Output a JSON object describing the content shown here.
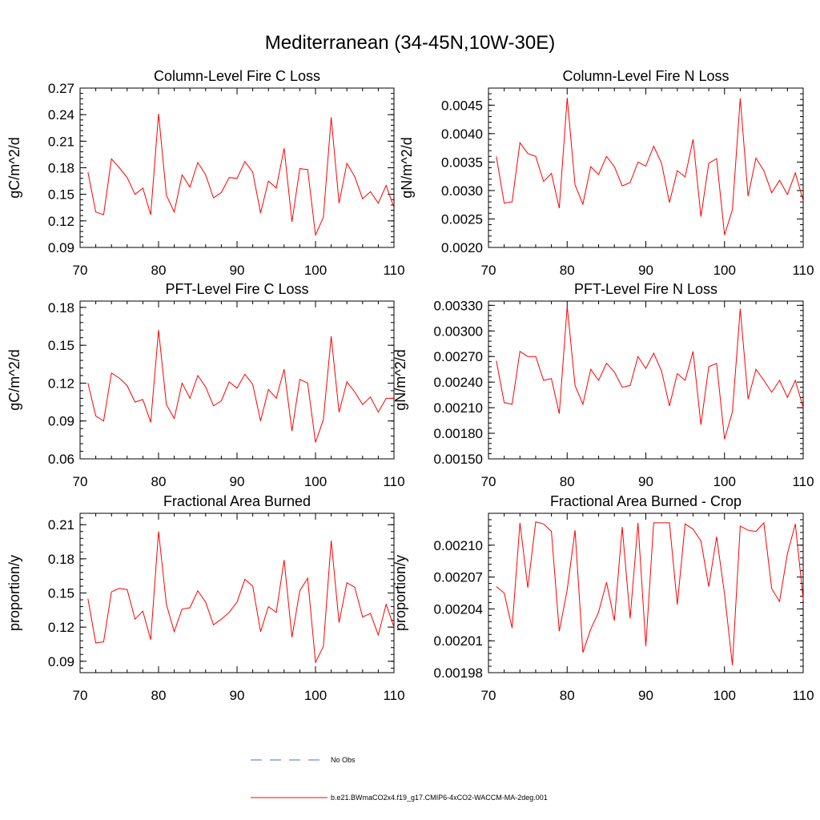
{
  "title": "Mediterranean (34-45N,10W-30E)",
  "colors": {
    "series": "#ff0000",
    "obs": "#4a6fd0",
    "axis": "#000000"
  },
  "legend": {
    "obs_label": "No Obs",
    "run_label": "b.e21.BWmaCO2x4.f19_g17.CMIP6-4xCO2-WACCM-MA-2deg.001"
  },
  "chart_data": [
    {
      "type": "line",
      "title": "Column-Level Fire C Loss",
      "ylabel": "gC/m^2/d",
      "xlim": [
        70,
        110
      ],
      "ylim": [
        0.09,
        0.27
      ],
      "xticks": [
        70,
        80,
        90,
        100,
        110
      ],
      "xtick_labels": [
        "70",
        "80",
        "90",
        "100",
        "110"
      ],
      "yticks": [
        0.09,
        0.12,
        0.15,
        0.18,
        0.21,
        0.24,
        0.27
      ],
      "ytick_labels": [
        "0.09",
        "0.12",
        "0.15",
        "0.18",
        "0.21",
        "0.24",
        "0.27"
      ],
      "x_start": 71,
      "values": [
        0.175,
        0.13,
        0.127,
        0.19,
        0.18,
        0.169,
        0.15,
        0.157,
        0.127,
        0.241,
        0.149,
        0.13,
        0.172,
        0.158,
        0.186,
        0.172,
        0.146,
        0.152,
        0.169,
        0.168,
        0.187,
        0.175,
        0.129,
        0.165,
        0.157,
        0.202,
        0.119,
        0.179,
        0.178,
        0.104,
        0.124,
        0.237,
        0.14,
        0.185,
        0.17,
        0.145,
        0.153,
        0.14,
        0.16,
        0.135
      ]
    },
    {
      "type": "line",
      "title": "Column-Level Fire N Loss",
      "ylabel": "gN/m^2/d",
      "xlim": [
        70,
        110
      ],
      "ylim": [
        0.002,
        0.0048
      ],
      "xticks": [
        70,
        80,
        90,
        100,
        110
      ],
      "xtick_labels": [
        "70",
        "80",
        "90",
        "100",
        "110"
      ],
      "yticks": [
        0.002,
        0.0025,
        0.003,
        0.0035,
        0.004,
        0.0045
      ],
      "ytick_labels": [
        "0.0020",
        "0.0025",
        "0.0030",
        "0.0035",
        "0.0040",
        "0.0045"
      ],
      "x_start": 71,
      "values": [
        0.0036,
        0.00278,
        0.0028,
        0.00384,
        0.00365,
        0.0036,
        0.00316,
        0.0033,
        0.00269,
        0.00463,
        0.0031,
        0.00276,
        0.00342,
        0.00328,
        0.0036,
        0.00342,
        0.00308,
        0.00314,
        0.0035,
        0.00343,
        0.00378,
        0.00348,
        0.00279,
        0.00335,
        0.00324,
        0.0039,
        0.00254,
        0.00348,
        0.00356,
        0.00222,
        0.00266,
        0.00462,
        0.0029,
        0.00357,
        0.00335,
        0.00296,
        0.00318,
        0.00293,
        0.00331,
        0.00282
      ]
    },
    {
      "type": "line",
      "title": "PFT-Level Fire C Loss",
      "ylabel": "gC/m^2/d",
      "xlim": [
        70,
        110
      ],
      "ylim": [
        0.06,
        0.185
      ],
      "xticks": [
        70,
        80,
        90,
        100,
        110
      ],
      "xtick_labels": [
        "70",
        "80",
        "90",
        "100",
        "110"
      ],
      "yticks": [
        0.06,
        0.09,
        0.12,
        0.15,
        0.18
      ],
      "ytick_labels": [
        "0.06",
        "0.09",
        "0.12",
        "0.15",
        "0.18"
      ],
      "x_start": 71,
      "values": [
        0.12,
        0.094,
        0.09,
        0.128,
        0.124,
        0.118,
        0.105,
        0.107,
        0.089,
        0.162,
        0.103,
        0.092,
        0.12,
        0.108,
        0.126,
        0.117,
        0.102,
        0.106,
        0.121,
        0.116,
        0.127,
        0.119,
        0.09,
        0.115,
        0.108,
        0.131,
        0.082,
        0.123,
        0.12,
        0.073,
        0.091,
        0.157,
        0.097,
        0.121,
        0.113,
        0.103,
        0.109,
        0.097,
        0.108,
        0.108
      ]
    },
    {
      "type": "line",
      "title": "PFT-Level Fire N Loss",
      "ylabel": "gN/m^2/d",
      "xlim": [
        70,
        110
      ],
      "ylim": [
        0.0015,
        0.00335
      ],
      "xticks": [
        70,
        80,
        90,
        100,
        110
      ],
      "xtick_labels": [
        "70",
        "80",
        "90",
        "100",
        "110"
      ],
      "yticks": [
        0.0015,
        0.0018,
        0.0021,
        0.0024,
        0.0027,
        0.003,
        0.0033
      ],
      "ytick_labels": [
        "0.00150",
        "0.00180",
        "0.00210",
        "0.00240",
        "0.00270",
        "0.00300",
        "0.00330"
      ],
      "x_start": 71,
      "values": [
        0.00265,
        0.00216,
        0.00214,
        0.00276,
        0.0027,
        0.0027,
        0.00242,
        0.00244,
        0.00203,
        0.00329,
        0.00236,
        0.00214,
        0.00255,
        0.00242,
        0.00262,
        0.00252,
        0.00234,
        0.00236,
        0.0027,
        0.00256,
        0.00274,
        0.00253,
        0.00212,
        0.0025,
        0.00242,
        0.00276,
        0.0019,
        0.00258,
        0.00262,
        0.00173,
        0.00205,
        0.00326,
        0.0022,
        0.00255,
        0.00242,
        0.00228,
        0.00242,
        0.00222,
        0.00242,
        0.0021
      ]
    },
    {
      "type": "line",
      "title": "Fractional Area Burned",
      "ylabel": "proportion/y",
      "xlim": [
        70,
        110
      ],
      "ylim": [
        0.08,
        0.22
      ],
      "xticks": [
        70,
        80,
        90,
        100,
        110
      ],
      "xtick_labels": [
        "70",
        "80",
        "90",
        "100",
        "110"
      ],
      "yticks": [
        0.09,
        0.12,
        0.15,
        0.18,
        0.21
      ],
      "ytick_labels": [
        "0.09",
        "0.12",
        "0.15",
        "0.18",
        "0.21"
      ],
      "x_start": 71,
      "values": [
        0.145,
        0.106,
        0.107,
        0.151,
        0.154,
        0.153,
        0.127,
        0.134,
        0.109,
        0.204,
        0.14,
        0.116,
        0.136,
        0.137,
        0.152,
        0.142,
        0.122,
        0.127,
        0.133,
        0.142,
        0.162,
        0.156,
        0.116,
        0.138,
        0.133,
        0.179,
        0.111,
        0.152,
        0.163,
        0.089,
        0.103,
        0.196,
        0.124,
        0.159,
        0.155,
        0.129,
        0.132,
        0.113,
        0.14,
        0.12
      ]
    },
    {
      "type": "line",
      "title": "Fractional Area Burned - Crop",
      "ylabel": "proportion/y",
      "xlim": [
        70,
        110
      ],
      "ylim": [
        0.00198,
        0.00213
      ],
      "xticks": [
        70,
        80,
        90,
        100,
        110
      ],
      "xtick_labels": [
        "70",
        "80",
        "90",
        "100",
        "110"
      ],
      "yticks": [
        0.00198,
        0.00201,
        0.00204,
        0.00207,
        0.0021
      ],
      "ytick_labels": [
        "0.00198",
        "0.00201",
        "0.00204",
        "0.00207",
        "0.00210"
      ],
      "x_start": 71,
      "values": [
        0.002061,
        0.002055,
        0.002022,
        0.002121,
        0.00206,
        0.002122,
        0.00212,
        0.002113,
        0.002019,
        0.002058,
        0.002114,
        0.001999,
        0.002021,
        0.002037,
        0.002065,
        0.002029,
        0.002117,
        0.002031,
        0.002121,
        0.002005,
        0.002121,
        0.002121,
        0.002121,
        0.002044,
        0.00212,
        0.002115,
        0.002104,
        0.002061,
        0.002108,
        0.002054,
        0.001987,
        0.002118,
        0.002114,
        0.002113,
        0.002121,
        0.002059,
        0.002047,
        0.002092,
        0.00212,
        0.002049
      ]
    }
  ]
}
